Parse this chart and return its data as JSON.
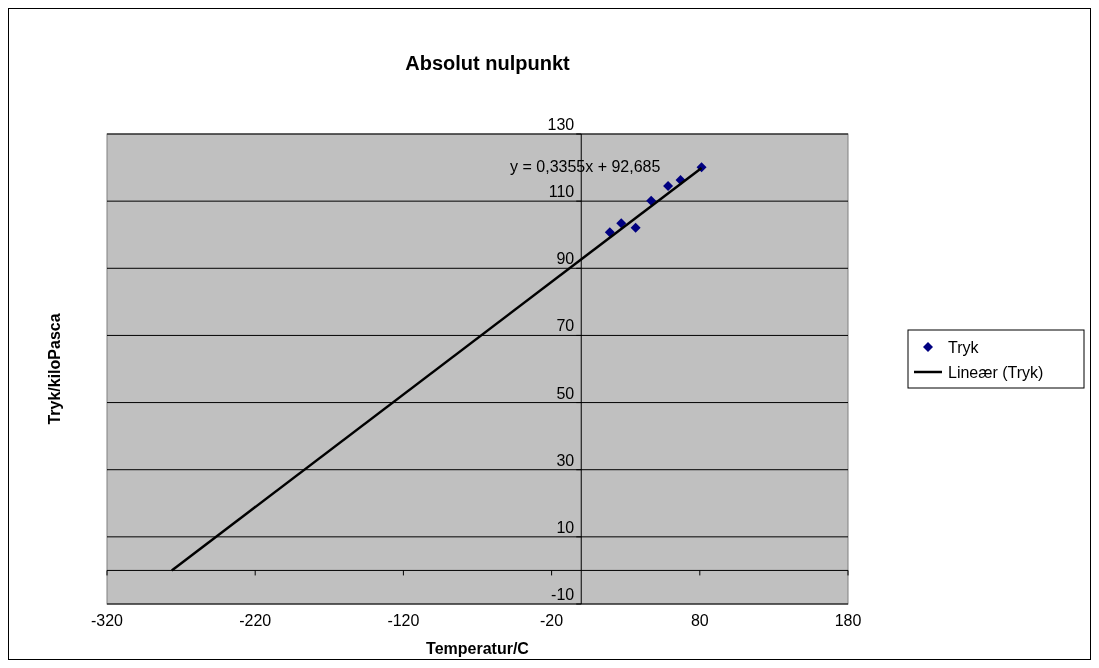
{
  "chart_data": {
    "type": "scatter",
    "title": "Absolut nulpunkt",
    "xlabel": "Temperatur/C",
    "ylabel": "Tryk/kiloPasca",
    "annotations": [
      "y = 0,3355x + 92,685"
    ],
    "xlim": [
      -320,
      180
    ],
    "xticks": [
      -320,
      -220,
      -120,
      -20,
      80,
      180
    ],
    "ylim": [
      -10,
      130
    ],
    "yticks": [
      -10,
      10,
      30,
      50,
      70,
      90,
      110,
      130
    ],
    "grid": "y",
    "legend": "right",
    "series": [
      {
        "name": "Tryk",
        "marker": "diamond",
        "color": "#000080",
        "x": [
          19.3,
          27,
          36.7,
          47.2,
          58.6,
          67,
          81.2
        ],
        "values": [
          100.7,
          103.4,
          102.1,
          110.1,
          114.5,
          116.3,
          120.1
        ]
      },
      {
        "name": "Lineær (Tryk)",
        "type": "line",
        "marker": "none",
        "color": "#000000",
        "x": [
          -276.3,
          81.2
        ],
        "values": [
          0,
          119.9
        ]
      }
    ]
  }
}
